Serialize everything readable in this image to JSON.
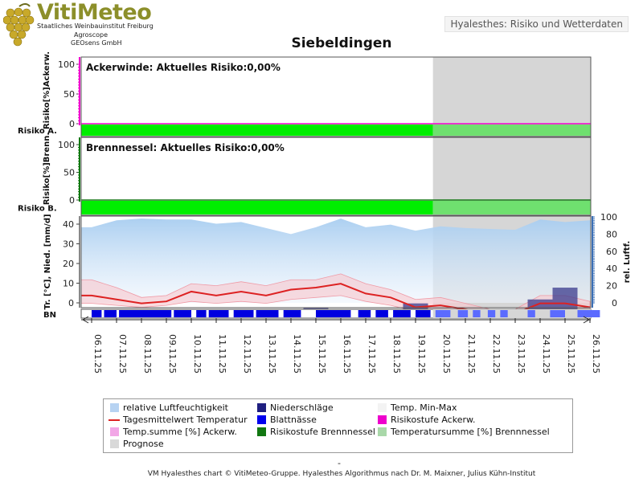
{
  "header": {
    "logo_title": "VitiMeteo",
    "logo_lines": [
      "Staatliches Weinbauinstitut Freiburg",
      "Agroscope",
      "GEOsens GmbH"
    ],
    "caption": "Hyalesthes: Risiko und Wetterdaten",
    "title": "Siebeldingen"
  },
  "colors": {
    "risk_green": "#00ee00",
    "forecast_grey": "#d6d6d6",
    "humidity_blue": "#a8cdf0",
    "temp_line": "#dd2222",
    "temp_band": "#f7c9cf",
    "precip": "#3a3a8c",
    "wetness": "#0000e0",
    "acker_magenta": "#ee00cc",
    "brenn_green": "#117711"
  },
  "chart_data": [
    {
      "type": "line",
      "annotation": "Ackerwinde: Aktuelles Risiko:0,00%",
      "ylabel": "Risiko[%]Ackerw.",
      "yticks": [
        0,
        50,
        100
      ],
      "ylim": [
        0,
        100
      ],
      "risk_row_label": "Risiko A.",
      "current_risk_percent": 0,
      "values": [
        0,
        0,
        0,
        0,
        0,
        0,
        0,
        0,
        0,
        0,
        0,
        0,
        0,
        0,
        0,
        0,
        0,
        0,
        0,
        0,
        0
      ]
    },
    {
      "type": "line",
      "annotation": "Brennnessel: Aktuelles Risiko:0,00%",
      "ylabel": "Risiko[%]Brenn.",
      "yticks": [
        0,
        50,
        100
      ],
      "ylim": [
        0,
        100
      ],
      "risk_row_label": "Risiko B.",
      "current_risk_percent": 0,
      "values": [
        0,
        0,
        0,
        0,
        0,
        0,
        0,
        0,
        0,
        0,
        0,
        0,
        0,
        0,
        0,
        0,
        0,
        0,
        0,
        0,
        0
      ]
    },
    {
      "type": "line",
      "ylabel": "Tr. [°C], Nied. [mm/d]",
      "y2label": "rel. Luftf.",
      "yticks": [
        0,
        10,
        20,
        30,
        40
      ],
      "ylim": [
        -1,
        47
      ],
      "y2ticks": [
        0,
        20,
        40,
        60,
        80,
        100
      ],
      "y2lim": [
        -2.5,
        100
      ],
      "wetness_row_label": "BN",
      "categories": [
        "06.11.25",
        "07.11.25",
        "08.11.25",
        "09.11.25",
        "10.11.25",
        "11.11.25",
        "12.11.25",
        "13.11.25",
        "14.11.25",
        "15.11.25",
        "16.11.25",
        "17.11.25",
        "18.11.25",
        "19.11.25",
        "20.11.25",
        "21.11.25",
        "22.11.25",
        "23.11.25",
        "24.11.25",
        "25.11.25",
        "26.11.25"
      ],
      "forecast_from_index": 13.7,
      "series": [
        {
          "name": "relative Luftfeuchtigkeit",
          "axis": "right",
          "values": [
            88,
            96,
            98,
            97,
            97,
            92,
            94,
            87,
            80,
            88,
            98,
            88,
            91,
            84,
            89,
            87,
            86,
            85,
            97,
            94,
            96
          ]
        },
        {
          "name": "Tagesmittelwert Temperatur",
          "axis": "left",
          "values": [
            7,
            5,
            3,
            4,
            9,
            7,
            9,
            7,
            10,
            11,
            13,
            8,
            6,
            1,
            2,
            0,
            -2,
            -2,
            3,
            3,
            1
          ]
        },
        {
          "name": "Temp. Min-Max",
          "axis": "left",
          "min": [
            3,
            2,
            1,
            2,
            4,
            3,
            4,
            3,
            5,
            6,
            7,
            4,
            2,
            -1,
            -1,
            -3,
            -4,
            -4,
            -1,
            0,
            -1
          ],
          "max": [
            15,
            11,
            6,
            7,
            13,
            12,
            14,
            12,
            15,
            15,
            18,
            13,
            10,
            5,
            6,
            3,
            0,
            0,
            7,
            7,
            4
          ]
        },
        {
          "name": "Niederschläge",
          "axis": "left",
          "values": [
            0,
            0,
            0,
            0,
            0,
            0,
            0,
            0,
            0,
            1,
            0,
            0,
            0,
            3,
            0,
            0,
            0,
            0,
            5,
            11,
            0
          ]
        }
      ],
      "wetness_hours": [
        [
          0.0,
          0.4
        ],
        [
          0.5,
          1.0
        ],
        [
          1.1,
          3.2
        ],
        [
          3.3,
          4.0
        ],
        [
          4.2,
          4.6
        ],
        [
          4.7,
          5.5
        ],
        [
          5.7,
          6.5
        ],
        [
          6.6,
          7.5
        ],
        [
          7.7,
          8.4
        ],
        [
          9.0,
          10.4
        ],
        [
          10.7,
          11.2
        ],
        [
          11.4,
          11.9
        ],
        [
          12.1,
          12.8
        ],
        [
          13.0,
          13.6
        ],
        [
          13.8,
          14.4
        ],
        [
          14.7,
          15.1
        ],
        [
          15.3,
          15.6
        ],
        [
          15.9,
          16.2
        ],
        [
          16.4,
          16.7
        ],
        [
          17.5,
          17.8
        ],
        [
          18.4,
          19.0
        ],
        [
          19.5,
          20.4
        ]
      ]
    }
  ],
  "legend": {
    "items": [
      {
        "label": "relative Luftfeuchtigkeit",
        "swatch": "#b7d3f2",
        "kind": "box"
      },
      {
        "label": "Niederschläge",
        "swatch": "#1f1f80",
        "kind": "box"
      },
      {
        "label": "Temp. Min-Max",
        "swatch": "#f3f3f3",
        "kind": "box"
      },
      {
        "label": "Tagesmittelwert Temperatur",
        "swatch": "#dd2222",
        "kind": "line"
      },
      {
        "label": "Blattnässe",
        "swatch": "#0000ee",
        "kind": "box"
      },
      {
        "label": "Risikostufe Ackerw.",
        "swatch": "#ee00cc",
        "kind": "box"
      },
      {
        "label": "Temp.summe [%] Ackerw.",
        "swatch": "#f2a6e6",
        "kind": "box"
      },
      {
        "label": "Risikostufe Brennnessel",
        "swatch": "#117711",
        "kind": "box"
      },
      {
        "label": "Temperatursumme [%] Brennnessel",
        "swatch": "#a9d8a9",
        "kind": "box"
      },
      {
        "label": "Prognose",
        "swatch": "#d9d9d9",
        "kind": "box"
      }
    ]
  },
  "footer": {
    "dash": "-",
    "credit": "VM Hyalesthes chart © VitiMeteo-Gruppe. Hyalesthes Algorithmus nach Dr. M. Maixner, Julius Kühn-Institut"
  }
}
